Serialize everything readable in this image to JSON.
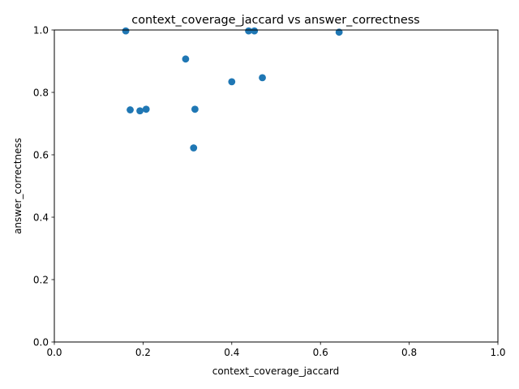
{
  "chart_data": {
    "type": "scatter",
    "title": "context_coverage_jaccard vs answer_correctness",
    "xlabel": "context_coverage_jaccard",
    "ylabel": "answer_correctness",
    "xlim": [
      0,
      1
    ],
    "ylim": [
      0,
      1
    ],
    "x_ticks": [
      "0.0",
      "0.2",
      "0.4",
      "0.6",
      "0.8",
      "1.0"
    ],
    "y_ticks": [
      "0.0",
      "0.2",
      "0.4",
      "0.6",
      "0.8",
      "1.0"
    ],
    "grid": false,
    "marker_color": "#1f77b4",
    "points": [
      {
        "x": 0.161,
        "y": 0.997
      },
      {
        "x": 0.438,
        "y": 0.997
      },
      {
        "x": 0.451,
        "y": 0.997
      },
      {
        "x": 0.642,
        "y": 0.993
      },
      {
        "x": 0.296,
        "y": 0.907
      },
      {
        "x": 0.469,
        "y": 0.847
      },
      {
        "x": 0.4,
        "y": 0.834
      },
      {
        "x": 0.171,
        "y": 0.744
      },
      {
        "x": 0.193,
        "y": 0.741
      },
      {
        "x": 0.207,
        "y": 0.746
      },
      {
        "x": 0.317,
        "y": 0.746
      },
      {
        "x": 0.314,
        "y": 0.622
      }
    ]
  }
}
